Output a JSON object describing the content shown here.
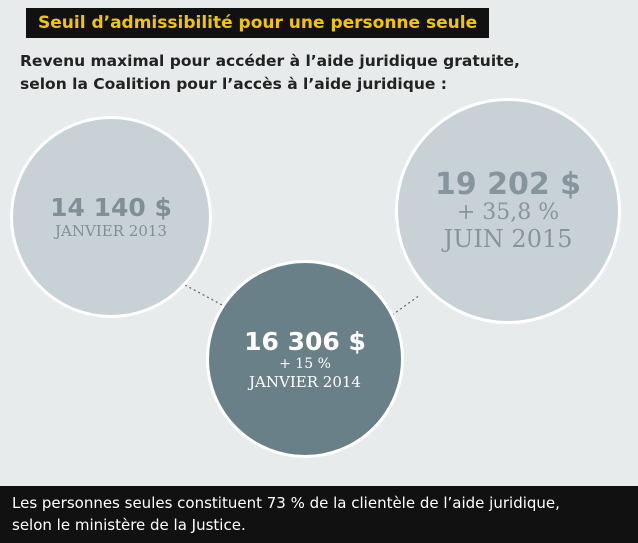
{
  "title": "Seuil d’admissibilité pour une personne seule",
  "subtitle": {
    "line1": "Revenu maximal pour accéder à l’aide juridique gratuite,",
    "line2": "selon la Coalition pour l’accès à l’aide juridique :"
  },
  "circles": [
    {
      "amount": "14 140 $",
      "change": "",
      "date": "JANVIER 2013"
    },
    {
      "amount": "16 306 $",
      "change": "+ 15 %",
      "date": "JANVIER 2014"
    },
    {
      "amount": "19 202 $",
      "change": "+ 35,8 %",
      "date": "JUIN 2015"
    }
  ],
  "footer": {
    "line1": "Les personnes seules constituent 73 % de la clientèle de l’aide juridique,",
    "line2": "selon le ministère de la Justice."
  },
  "colors": {
    "title_bg": "#111111",
    "title_text": "#f3c400",
    "panel_bg": "#e7ebeb",
    "light_circle": "#c8d2d6",
    "dark_circle": "#6a8089",
    "footer_bg": "#111111"
  }
}
